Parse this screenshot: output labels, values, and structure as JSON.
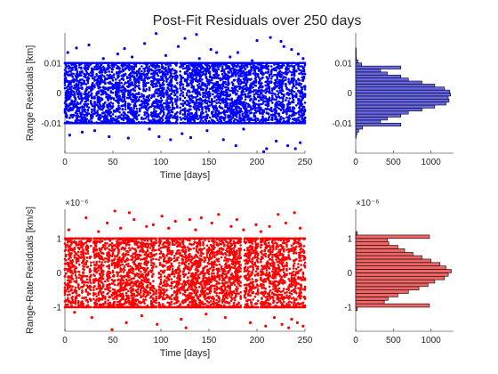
{
  "figure": {
    "title": "Post-Fit Residuals over 250 days"
  },
  "chart_data": [
    {
      "id": "range-scatter",
      "type": "scatter",
      "xlabel": "Time [days]",
      "ylabel": "Range Residuals [km]",
      "xlim": [
        0,
        250
      ],
      "ylim": [
        -0.02,
        0.02
      ],
      "xticks": [
        0,
        50,
        100,
        150,
        200,
        250
      ],
      "yticks": [
        -0.01,
        0,
        0.01
      ],
      "ytick_labels": [
        "-0.01",
        "0",
        "0.01"
      ],
      "color": "#0000ff",
      "x_days": [
        0,
        250
      ],
      "core_band": [
        -0.01,
        0.01
      ],
      "outlier_range": [
        -0.02,
        0.02
      ],
      "outlier_points": [
        [
          3,
          0.0135
        ],
        [
          5,
          -0.014
        ],
        [
          12,
          0.015
        ],
        [
          18,
          -0.013
        ],
        [
          25,
          0.016
        ],
        [
          31,
          -0.0125
        ],
        [
          40,
          0.0115
        ],
        [
          46,
          -0.0145
        ],
        [
          55,
          0.013
        ],
        [
          62,
          0.0148
        ],
        [
          66,
          -0.015
        ],
        [
          70,
          0.012
        ],
        [
          83,
          0.0165
        ],
        [
          88,
          -0.012
        ],
        [
          95,
          0.0198
        ],
        [
          98,
          -0.0145
        ],
        [
          105,
          0.0125
        ],
        [
          110,
          -0.0155
        ],
        [
          118,
          0.0155
        ],
        [
          122,
          -0.0135
        ],
        [
          125,
          0.0182
        ],
        [
          131,
          -0.0148
        ],
        [
          137,
          0.0195
        ],
        [
          140,
          0.0115
        ],
        [
          148,
          -0.0125
        ],
        [
          152,
          0.0145
        ],
        [
          158,
          0.0135
        ],
        [
          165,
          -0.0155
        ],
        [
          172,
          0.012
        ],
        [
          178,
          -0.0175
        ],
        [
          180,
          0.0135
        ],
        [
          186,
          -0.012
        ],
        [
          195,
          0.0108
        ],
        [
          200,
          0.0175
        ],
        [
          207,
          -0.0195
        ],
        [
          210,
          -0.0185
        ],
        [
          214,
          0.0185
        ],
        [
          220,
          -0.016
        ],
        [
          225,
          0.0172
        ],
        [
          228,
          0.0155
        ],
        [
          232,
          -0.0175
        ],
        [
          236,
          0.0145
        ],
        [
          240,
          -0.0185
        ],
        [
          243,
          0.013
        ],
        [
          245,
          -0.0165
        ],
        [
          248,
          0.0115
        ]
      ]
    },
    {
      "id": "range-rate-scatter",
      "type": "scatter",
      "xlabel": "Time [days]",
      "ylabel": "Range-Rate Residuals [km/s]",
      "exponent_label": "×10⁻⁶",
      "xlim": [
        0,
        250
      ],
      "ylim": [
        -1.7,
        1.85
      ],
      "xticks": [
        0,
        50,
        100,
        150,
        200,
        250
      ],
      "yticks": [
        -1,
        0,
        1
      ],
      "ytick_labels": [
        "-1",
        "0",
        "1"
      ],
      "color": "#ff0000",
      "x_days": [
        0,
        250
      ],
      "core_band": [
        -1,
        1
      ],
      "outlier_range": [
        -1.7,
        1.85
      ],
      "outlier_points": [
        [
          4,
          1.25
        ],
        [
          10,
          -1.15
        ],
        [
          22,
          1.6
        ],
        [
          28,
          -1.3
        ],
        [
          35,
          1.2
        ],
        [
          44,
          1.45
        ],
        [
          49,
          -1.65
        ],
        [
          52,
          1.8
        ],
        [
          58,
          1.3
        ],
        [
          64,
          -1.45
        ],
        [
          67,
          1.75
        ],
        [
          72,
          1.55
        ],
        [
          80,
          -1.25
        ],
        [
          85,
          1.35
        ],
        [
          92,
          1.4
        ],
        [
          96,
          -1.5
        ],
        [
          101,
          1.65
        ],
        [
          108,
          1.3
        ],
        [
          115,
          1.5
        ],
        [
          121,
          -1.35
        ],
        [
          126,
          -1.6
        ],
        [
          130,
          1.55
        ],
        [
          136,
          1.25
        ],
        [
          142,
          1.6
        ],
        [
          147,
          -1.2
        ],
        [
          153,
          1.45
        ],
        [
          160,
          1.7
        ],
        [
          167,
          -1.3
        ],
        [
          173,
          1.35
        ],
        [
          179,
          1.55
        ],
        [
          186,
          1.25
        ],
        [
          193,
          -1.45
        ],
        [
          199,
          1.4
        ],
        [
          204,
          1.2
        ],
        [
          209,
          -1.55
        ],
        [
          213,
          1.35
        ],
        [
          218,
          -1.3
        ],
        [
          222,
          1.7
        ],
        [
          226,
          -1.5
        ],
        [
          230,
          1.45
        ],
        [
          233,
          -1.6
        ],
        [
          236,
          -1.35
        ],
        [
          239,
          1.75
        ],
        [
          242,
          -1.45
        ],
        [
          245,
          1.3
        ],
        [
          248,
          -1.55
        ]
      ]
    },
    {
      "id": "range-hist",
      "type": "bar",
      "orientation": "horizontal",
      "xlim": [
        0,
        1300
      ],
      "ylim": [
        -0.02,
        0.02
      ],
      "xticks": [
        0,
        500,
        1000
      ],
      "yticks": [
        -0.01,
        0,
        0.01
      ],
      "ytick_labels": [
        "-0.01",
        "0",
        "0.01"
      ],
      "bin_width": 0.001,
      "bin_start": -0.015,
      "values": [
        5,
        15,
        40,
        90,
        600,
        330,
        420,
        600,
        700,
        880,
        1050,
        1200,
        1240,
        1230,
        1260,
        1250,
        1180,
        1050,
        880,
        700,
        600,
        420,
        330,
        600,
        80,
        30,
        10,
        5,
        3,
        2
      ],
      "face_color": "#6666e6",
      "edge_color": "#000000"
    },
    {
      "id": "range-rate-hist",
      "type": "bar",
      "orientation": "horizontal",
      "exponent_label": "×10⁻⁶",
      "xlim": [
        0,
        1300
      ],
      "ylim": [
        -1.7,
        1.85
      ],
      "xticks": [
        0,
        500,
        1000
      ],
      "yticks": [
        -1,
        0,
        1
      ],
      "ytick_labels": [
        "-1",
        "0",
        "1"
      ],
      "bin_width": 0.1,
      "bin_start": -1.1,
      "values": [
        20,
        980,
        380,
        430,
        560,
        700,
        840,
        960,
        1050,
        1180,
        1230,
        1270,
        1200,
        1120,
        1000,
        880,
        760,
        650,
        560,
        440,
        420,
        980,
        20
      ],
      "face_color": "#f06666",
      "edge_color": "#000000"
    }
  ]
}
